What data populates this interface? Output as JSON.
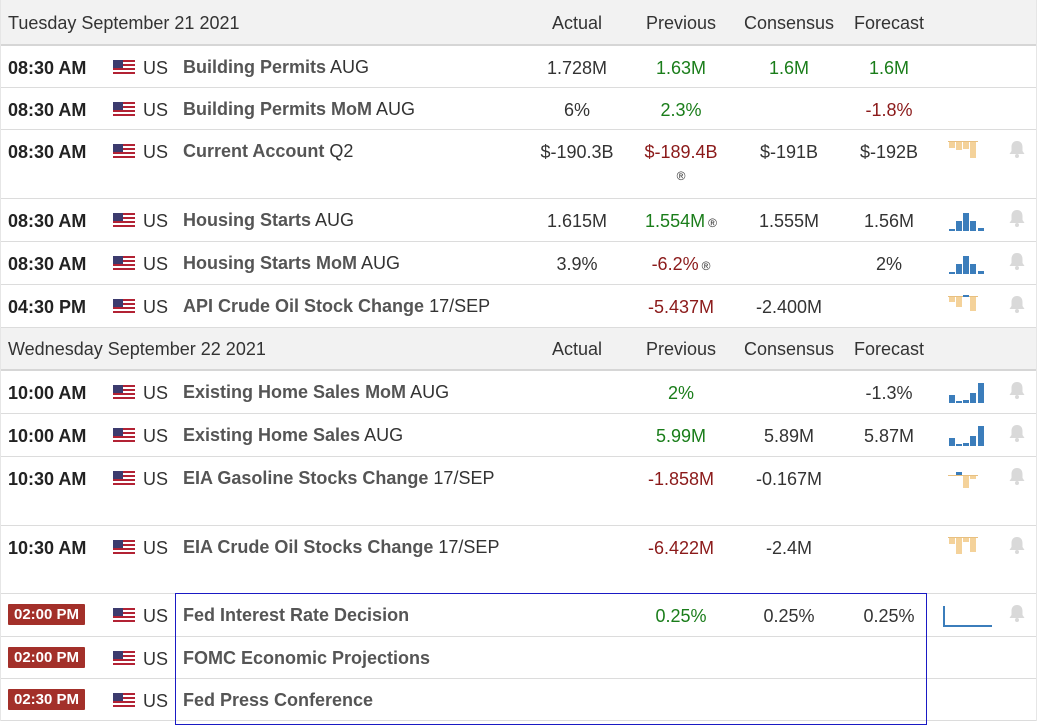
{
  "colors": {
    "actual_green": "#1a7d1a",
    "negative_red": "#8b1a1a",
    "badge_red": "#a3302a",
    "highlight_blue": "#1a1ac4"
  },
  "days": [
    {
      "date": "Tuesday September 21 2021",
      "columns": {
        "actual": "Actual",
        "previous": "Previous",
        "consensus": "Consensus",
        "forecast": "Forecast"
      },
      "events": [
        {
          "time": "08:30 AM",
          "country": "US",
          "name": "Building Permits",
          "period": "AUG",
          "actual": "1.728M",
          "previous": "1.63M",
          "consensus": "1.6M",
          "forecast": "1.6M"
        },
        {
          "time": "08:30 AM",
          "country": "US",
          "name": "Building Permits MoM",
          "period": "AUG",
          "actual": "6%",
          "previous": "2.3%",
          "consensus": "",
          "forecast": "-1.8%"
        },
        {
          "time": "08:30 AM",
          "country": "US",
          "name": "Current Account",
          "period": "Q2",
          "actual": "$-190.3B",
          "previous": "$-189.4B",
          "revised": "®",
          "consensus": "$-191B",
          "forecast": "$-192B"
        },
        {
          "time": "08:30 AM",
          "country": "US",
          "name": "Housing Starts",
          "period": "AUG",
          "actual": "1.615M",
          "previous": "1.554M",
          "revised": "®",
          "consensus": "1.555M",
          "forecast": "1.56M"
        },
        {
          "time": "08:30 AM",
          "country": "US",
          "name": "Housing Starts MoM",
          "period": "AUG",
          "actual": "3.9%",
          "previous": "-6.2%",
          "revised": "®",
          "consensus": "",
          "forecast": "2%"
        },
        {
          "time": "04:30 PM",
          "country": "US",
          "name": "API Crude Oil Stock Change",
          "period": "17/SEP",
          "actual": "",
          "previous": "-5.437M",
          "consensus": "-2.400M",
          "forecast": ""
        }
      ]
    },
    {
      "date": "Wednesday September 22 2021",
      "columns": {
        "actual": "Actual",
        "previous": "Previous",
        "consensus": "Consensus",
        "forecast": "Forecast"
      },
      "events": [
        {
          "time": "10:00 AM",
          "country": "US",
          "name": "Existing Home Sales MoM",
          "period": "AUG",
          "actual": "",
          "previous": "2%",
          "consensus": "",
          "forecast": "-1.3%"
        },
        {
          "time": "10:00 AM",
          "country": "US",
          "name": "Existing Home Sales",
          "period": "AUG",
          "actual": "",
          "previous": "5.99M",
          "consensus": "5.89M",
          "forecast": "5.87M"
        },
        {
          "time": "10:30 AM",
          "country": "US",
          "name": "EIA Gasoline Stocks Change",
          "period": "17/SEP",
          "actual": "",
          "previous": "-1.858M",
          "consensus": "-0.167M",
          "forecast": ""
        },
        {
          "time": "10:30 AM",
          "country": "US",
          "name": "EIA Crude Oil Stocks Change",
          "period": "17/SEP",
          "actual": "",
          "previous": "-6.422M",
          "consensus": "-2.4M",
          "forecast": ""
        },
        {
          "time": "02:00 PM",
          "country": "US",
          "name": "Fed Interest Rate Decision",
          "period": "",
          "actual": "",
          "previous": "0.25%",
          "consensus": "0.25%",
          "forecast": "0.25%"
        },
        {
          "time": "02:00 PM",
          "country": "US",
          "name": "FOMC Economic Projections",
          "period": "",
          "actual": "",
          "previous": "",
          "consensus": "",
          "forecast": ""
        },
        {
          "time": "02:30 PM",
          "country": "US",
          "name": "Fed Press Conference",
          "period": "",
          "actual": "",
          "previous": "",
          "consensus": "",
          "forecast": ""
        }
      ]
    }
  ]
}
